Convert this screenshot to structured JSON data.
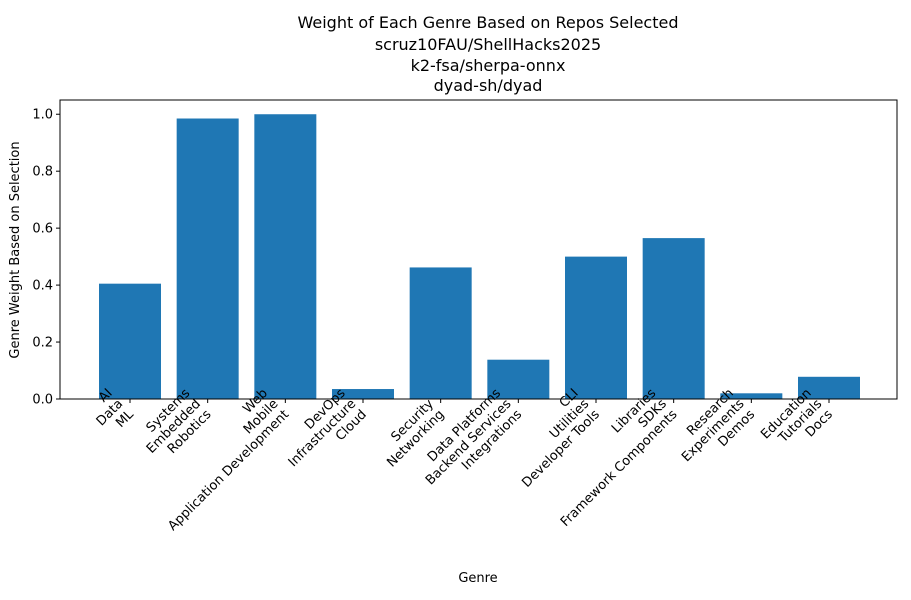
{
  "chart_data": {
    "type": "bar",
    "title_lines": [
      "Weight of Each Genre Based on Repos Selected",
      "scruz10FAU/ShellHacks2025",
      "k2-fsa/sherpa-onnx",
      "dyad-sh/dyad"
    ],
    "xlabel": "Genre",
    "ylabel": "Genre Weight Based on Selection",
    "ylim": [
      0,
      1.05
    ],
    "yticks": [
      "0.0",
      "0.2",
      "0.4",
      "0.6",
      "0.8",
      "1.0"
    ],
    "ytick_values": [
      0,
      0.2,
      0.4,
      0.6,
      0.8,
      1.0
    ],
    "categories": [
      [
        "AI",
        "Data",
        "ML"
      ],
      [
        "Systems",
        "Embedded",
        "Robotics"
      ],
      [
        "Web",
        "Mobile",
        "Application Development"
      ],
      [
        "DevOps",
        "Infrastructure",
        "Cloud"
      ],
      [
        "Security",
        "Networking"
      ],
      [
        "Data Platforms",
        "Backend Services",
        "Integrations"
      ],
      [
        "CLI",
        "Utilities",
        "Developer Tools"
      ],
      [
        "Libraries",
        "SDKs",
        "Framework Components"
      ],
      [
        "Research",
        "Experiments",
        "Demos"
      ],
      [
        "Education",
        "Tutorials",
        "Docs"
      ]
    ],
    "values": [
      0.405,
      0.985,
      1.0,
      0.035,
      0.462,
      0.138,
      0.5,
      0.565,
      0.02,
      0.078
    ],
    "bar_color": "#1f77b4",
    "grid": false
  }
}
